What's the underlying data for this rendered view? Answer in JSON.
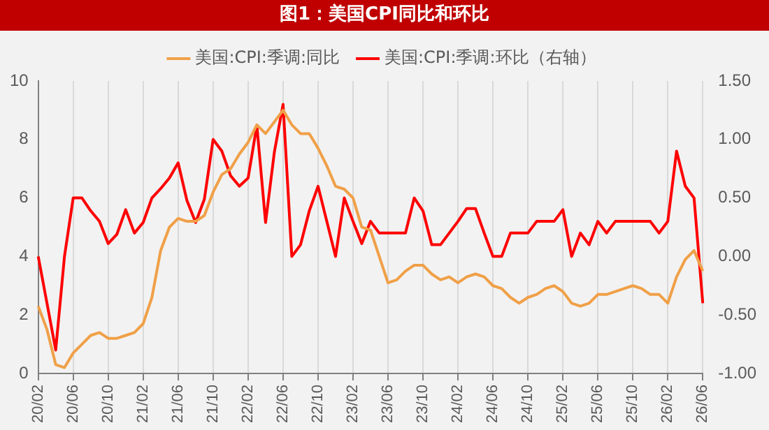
{
  "chart_data": {
    "type": "line",
    "title": "图1：美国CPI同比和环比",
    "categories": [
      "20/02",
      null,
      null,
      null,
      "20/06",
      null,
      null,
      null,
      "20/10",
      null,
      null,
      null,
      "21/02",
      null,
      null,
      null,
      "21/06",
      null,
      null,
      null,
      "21/10",
      null,
      null,
      null,
      "22/02",
      null,
      null,
      null,
      "22/06",
      null,
      null,
      null,
      "22/10",
      null,
      null,
      null,
      "23/02",
      null,
      null,
      null,
      "23/06",
      null,
      null,
      null,
      "23/10",
      null,
      null,
      null,
      "24/02",
      null,
      null,
      null,
      "24/06",
      null,
      null,
      null,
      "24/10",
      null,
      null,
      null,
      "25/02",
      null,
      null,
      null,
      "25/06",
      null,
      null,
      null,
      "25/10",
      null,
      null,
      null,
      "26/02",
      null,
      null,
      null,
      "26/06"
    ],
    "series": [
      {
        "name": "美国:CPI:季调:同比",
        "color": "#f0a048",
        "values": [
          2.3,
          1.5,
          0.3,
          0.2,
          0.7,
          1.0,
          1.3,
          1.4,
          1.2,
          1.2,
          1.3,
          1.4,
          1.7,
          2.6,
          4.2,
          5.0,
          5.3,
          5.2,
          5.2,
          5.4,
          6.2,
          6.8,
          7.0,
          7.5,
          7.9,
          8.5,
          8.2,
          8.6,
          9.0,
          8.5,
          8.2,
          8.2,
          7.7,
          7.1,
          6.4,
          6.3,
          6.0,
          5.0,
          4.9,
          4.0,
          3.1,
          3.2,
          3.5,
          3.7,
          3.7,
          3.4,
          3.2,
          3.3,
          3.1,
          3.3,
          3.4,
          3.3,
          3.0,
          2.9,
          2.6,
          2.4,
          2.6,
          2.7,
          2.9,
          3.0,
          2.8,
          2.4,
          2.3,
          2.4,
          2.7,
          2.7,
          2.8,
          2.9,
          3.0,
          2.9,
          2.7,
          2.7,
          2.4,
          3.3,
          3.9,
          4.2,
          3.5
        ]
      },
      {
        "name": "美国:CPI:季调:环比（右轴）",
        "color": "#ff0000",
        "axis": "y2",
        "values": [
          0.0,
          -0.4,
          -0.8,
          0.0,
          0.5,
          0.5,
          0.39,
          0.3,
          0.11,
          0.19,
          0.4,
          0.2,
          0.29,
          0.5,
          0.58,
          0.67,
          0.8,
          0.48,
          0.29,
          0.49,
          1.0,
          0.9,
          0.69,
          0.6,
          0.67,
          1.12,
          0.29,
          0.89,
          1.3,
          0.0,
          0.1,
          0.39,
          0.6,
          0.3,
          0.0,
          0.5,
          0.3,
          0.11,
          0.3,
          0.2,
          0.2,
          0.2,
          0.2,
          0.5,
          0.39,
          0.1,
          0.1,
          0.2,
          0.3,
          0.41,
          0.41,
          0.2,
          0.0,
          0.0,
          0.2,
          0.2,
          0.2,
          0.3,
          0.3,
          0.3,
          0.4,
          0.0,
          0.2,
          0.1,
          0.3,
          0.2,
          0.3,
          0.3,
          0.3,
          0.3,
          0.3,
          0.2,
          0.3,
          0.9,
          0.6,
          0.5,
          -0.4
        ]
      }
    ],
    "ylim": [
      0,
      10
    ],
    "yticks": [
      0,
      2,
      4,
      6,
      8,
      10
    ],
    "y2lim": [
      -1,
      1.5
    ],
    "y2ticks": [
      {
        "value": -1,
        "label": "-1.00"
      },
      {
        "value": -0.5,
        "label": "-0.50"
      },
      {
        "value": 0,
        "label": "0.00"
      },
      {
        "value": 0.5,
        "label": "0.50"
      },
      {
        "value": 1,
        "label": "1.00"
      },
      {
        "value": 1.5,
        "label": "1.50"
      }
    ],
    "grid": "x",
    "legend": "top",
    "marker": "none",
    "line_style": "solid"
  }
}
